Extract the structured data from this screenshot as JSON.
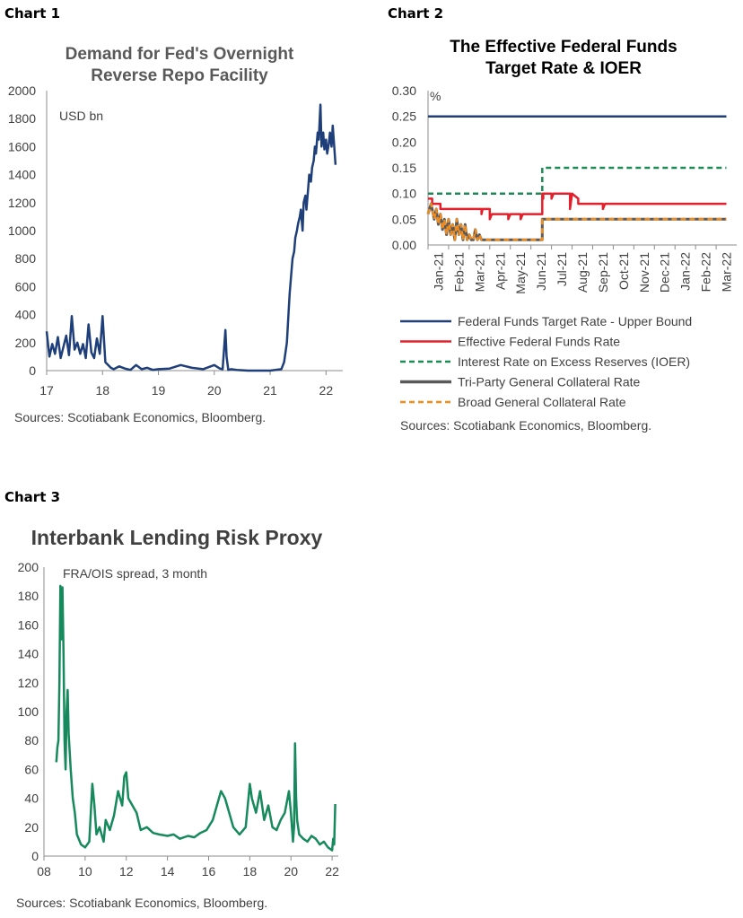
{
  "chart_data": [
    {
      "label": "Chart 1",
      "type": "line",
      "title": [
        "Demand for Fed's Overnight",
        "Reverse Repo Facility"
      ],
      "unit_label": "USD bn",
      "source": "Sources: Scotiabank Economics, Bloomberg.",
      "xlim": [
        2017,
        2022.3
      ],
      "ylim": [
        0,
        2000
      ],
      "yticks": [
        "0",
        "200",
        "400",
        "600",
        "800",
        "1000",
        "1200",
        "1400",
        "1600",
        "1800",
        "2000"
      ],
      "xticks": [
        "17",
        "18",
        "19",
        "20",
        "21",
        "22"
      ],
      "color": "#1f3f7a",
      "series": [
        {
          "x": [
            2017.0,
            2017.05,
            2017.1,
            2017.15,
            2017.2,
            2017.25,
            2017.3,
            2017.35,
            2017.4,
            2017.45,
            2017.5,
            2017.55,
            2017.6,
            2017.65,
            2017.7,
            2017.75,
            2017.8,
            2017.85,
            2017.9,
            2017.95,
            2018.0,
            2018.05,
            2018.1,
            2018.15,
            2018.2,
            2018.3,
            2018.4,
            2018.5,
            2018.6,
            2018.7,
            2018.8,
            2018.9,
            2019.0,
            2019.2,
            2019.4,
            2019.6,
            2019.8,
            2020.0,
            2020.1,
            2020.15,
            2020.2,
            2020.22,
            2020.25,
            2020.3,
            2020.4,
            2020.6,
            2020.8,
            2021.0,
            2021.2,
            2021.25,
            2021.3,
            2021.32,
            2021.35,
            2021.38,
            2021.4,
            2021.43,
            2021.45,
            2021.48,
            2021.5,
            2021.53,
            2021.55,
            2021.58,
            2021.6,
            2021.63,
            2021.65,
            2021.68,
            2021.7,
            2021.73,
            2021.75,
            2021.78,
            2021.8,
            2021.82,
            2021.85,
            2021.87,
            2021.9,
            2021.92,
            2021.95,
            2021.97,
            2022.0,
            2022.02,
            2022.05,
            2022.07,
            2022.1,
            2022.12,
            2022.15,
            2022.17
          ],
          "y": [
            280,
            100,
            190,
            120,
            240,
            90,
            170,
            250,
            110,
            390,
            150,
            200,
            120,
            190,
            90,
            330,
            130,
            90,
            230,
            120,
            390,
            60,
            40,
            20,
            10,
            30,
            15,
            5,
            40,
            10,
            20,
            5,
            10,
            15,
            40,
            20,
            10,
            40,
            15,
            10,
            290,
            100,
            5,
            10,
            5,
            0,
            0,
            0,
            10,
            60,
            200,
            350,
            550,
            700,
            800,
            850,
            950,
            1000,
            1050,
            1100,
            1150,
            1000,
            1200,
            1250,
            1150,
            1300,
            1400,
            1350,
            1450,
            1500,
            1600,
            1550,
            1700,
            1650,
            1900,
            1600,
            1700,
            1580,
            1650,
            1550,
            1620,
            1700,
            1600,
            1750,
            1580,
            1470
          ]
        }
      ]
    },
    {
      "label": "Chart 2",
      "type": "line",
      "title": [
        "The Effective Federal Funds",
        "Target Rate & IOER"
      ],
      "unit_label": "%",
      "source": "Sources: Scotiabank Economics, Bloomberg.",
      "ylim": [
        0,
        0.3
      ],
      "yticks": [
        "0.00",
        "0.05",
        "0.10",
        "0.15",
        "0.20",
        "0.25",
        "0.30"
      ],
      "xticks": [
        "Jan-21",
        "Feb-21",
        "Mar-21",
        "Apr-21",
        "May-21",
        "Jun-21",
        "Jul-21",
        "Aug-21",
        "Sep-21",
        "Oct-21",
        "Nov-21",
        "Dec-21",
        "Jan-22",
        "Feb-22",
        "Mar-22"
      ],
      "series": [
        {
          "name": "Federal Funds Target Rate - Upper Bound",
          "color": "#1f3f7a",
          "dash": "solid",
          "x": [
            0,
            14.5
          ],
          "y": [
            0.25,
            0.25
          ]
        },
        {
          "name": "Effective Federal Funds Rate",
          "color": "#e3202b",
          "dash": "solid",
          "x": [
            0,
            0.2,
            0.2,
            0.6,
            0.6,
            0.9,
            0.9,
            2.6,
            2.6,
            2.65,
            2.65,
            3.0,
            3.0,
            3.1,
            3.1,
            3.9,
            3.9,
            4.0,
            4.0,
            4.5,
            4.5,
            4.6,
            4.6,
            5.55,
            5.55,
            5.6,
            5.6,
            6.0,
            6.0,
            6.1,
            6.1,
            6.9,
            6.9,
            7.0,
            7.0,
            7.3,
            7.3,
            7.4,
            7.4,
            8.5,
            8.5,
            8.6,
            8.6,
            14.5
          ],
          "y": [
            0.09,
            0.09,
            0.08,
            0.08,
            0.07,
            0.07,
            0.07,
            0.07,
            0.06,
            0.07,
            0.07,
            0.07,
            0.05,
            0.06,
            0.06,
            0.06,
            0.05,
            0.06,
            0.06,
            0.06,
            0.05,
            0.06,
            0.06,
            0.06,
            0.1,
            0.09,
            0.1,
            0.1,
            0.09,
            0.1,
            0.1,
            0.1,
            0.07,
            0.1,
            0.1,
            0.09,
            0.08,
            0.08,
            0.08,
            0.08,
            0.07,
            0.08,
            0.08,
            0.08
          ]
        },
        {
          "name": "Interest Rate on Excess Reserves (IOER)",
          "color": "#1e8a55",
          "dash": "dashed",
          "x": [
            0,
            5.55,
            5.55,
            14.5
          ],
          "y": [
            0.1,
            0.1,
            0.15,
            0.15
          ]
        },
        {
          "name": "Tri-Party General Collateral Rate",
          "color": "#5a5a5a",
          "dash": "solid",
          "x": [
            0,
            0.15,
            0.3,
            0.4,
            0.5,
            0.6,
            0.7,
            0.8,
            0.9,
            1.0,
            1.1,
            1.2,
            1.3,
            1.4,
            1.5,
            1.6,
            1.7,
            1.8,
            1.9,
            2.0,
            2.1,
            2.2,
            2.3,
            2.4,
            2.5,
            2.6,
            2.7,
            2.8,
            2.9,
            3.0,
            5.55,
            5.55,
            14.5
          ],
          "y": [
            0.06,
            0.08,
            0.05,
            0.07,
            0.04,
            0.06,
            0.03,
            0.05,
            0.02,
            0.05,
            0.02,
            0.04,
            0.01,
            0.05,
            0.02,
            0.04,
            0.01,
            0.04,
            0.01,
            0.02,
            0.01,
            0.01,
            0.03,
            0.01,
            0.02,
            0.01,
            0.01,
            0.01,
            0.01,
            0.01,
            0.01,
            0.05,
            0.05
          ]
        },
        {
          "name": "Broad General Collateral Rate",
          "color": "#f08c1e",
          "dash": "dashed",
          "x": [
            0,
            0.15,
            0.3,
            0.4,
            0.5,
            0.6,
            0.7,
            0.8,
            0.9,
            1.0,
            1.1,
            1.2,
            1.3,
            1.4,
            1.5,
            1.6,
            1.7,
            1.8,
            1.9,
            2.0,
            2.1,
            2.2,
            2.3,
            2.4,
            2.5,
            2.6,
            2.7,
            2.8,
            2.9,
            3.0,
            5.55,
            5.55,
            14.5
          ],
          "y": [
            0.06,
            0.08,
            0.05,
            0.07,
            0.04,
            0.06,
            0.03,
            0.05,
            0.02,
            0.05,
            0.02,
            0.04,
            0.01,
            0.05,
            0.02,
            0.04,
            0.01,
            0.04,
            0.01,
            0.02,
            0.01,
            0.01,
            0.03,
            0.01,
            0.02,
            0.01,
            0.01,
            0.01,
            0.01,
            0.01,
            0.01,
            0.05,
            0.05
          ]
        }
      ]
    },
    {
      "label": "Chart 3",
      "type": "line",
      "title": [
        "Interbank Lending Risk Proxy"
      ],
      "unit_label": "FRA/OIS spread, 3 month",
      "source": "Sources: Scotiabank Economics, Bloomberg.",
      "xlim": [
        2008,
        2022.3
      ],
      "ylim": [
        0,
        200
      ],
      "yticks": [
        "0",
        "20",
        "40",
        "60",
        "80",
        "100",
        "120",
        "140",
        "160",
        "180",
        "200"
      ],
      "xticks": [
        "08",
        "10",
        "12",
        "14",
        "16",
        "18",
        "20",
        "22"
      ],
      "color": "#168a5c",
      "series": [
        {
          "x": [
            2008.6,
            2008.65,
            2008.7,
            2008.75,
            2008.8,
            2008.85,
            2008.9,
            2008.95,
            2009.0,
            2009.05,
            2009.1,
            2009.15,
            2009.2,
            2009.3,
            2009.4,
            2009.5,
            2009.6,
            2009.8,
            2010.0,
            2010.2,
            2010.35,
            2010.45,
            2010.55,
            2010.7,
            2010.9,
            2011.0,
            2011.2,
            2011.4,
            2011.6,
            2011.8,
            2011.9,
            2012.0,
            2012.1,
            2012.3,
            2012.5,
            2012.7,
            2013.0,
            2013.3,
            2013.6,
            2014.0,
            2014.3,
            2014.6,
            2015.0,
            2015.3,
            2015.6,
            2015.9,
            2016.2,
            2016.4,
            2016.6,
            2016.8,
            2017.0,
            2017.2,
            2017.5,
            2017.8,
            2018.0,
            2018.1,
            2018.3,
            2018.5,
            2018.7,
            2018.9,
            2019.1,
            2019.3,
            2019.5,
            2019.7,
            2019.9,
            2020.0,
            2020.1,
            2020.15,
            2020.2,
            2020.25,
            2020.3,
            2020.4,
            2020.6,
            2020.8,
            2021.0,
            2021.2,
            2021.4,
            2021.6,
            2021.8,
            2022.0,
            2022.05,
            2022.1,
            2022.15
          ],
          "y": [
            65,
            75,
            80,
            120,
            187,
            150,
            186,
            140,
            80,
            60,
            100,
            115,
            85,
            60,
            40,
            30,
            15,
            8,
            6,
            10,
            50,
            35,
            15,
            20,
            10,
            25,
            18,
            28,
            45,
            35,
            55,
            58,
            40,
            35,
            30,
            18,
            20,
            16,
            15,
            14,
            15,
            12,
            14,
            13,
            16,
            18,
            25,
            35,
            45,
            40,
            30,
            20,
            15,
            20,
            50,
            40,
            30,
            45,
            25,
            35,
            20,
            18,
            25,
            30,
            45,
            30,
            10,
            20,
            78,
            40,
            25,
            15,
            12,
            10,
            14,
            12,
            8,
            10,
            6,
            4,
            12,
            8,
            36
          ]
        }
      ]
    }
  ]
}
